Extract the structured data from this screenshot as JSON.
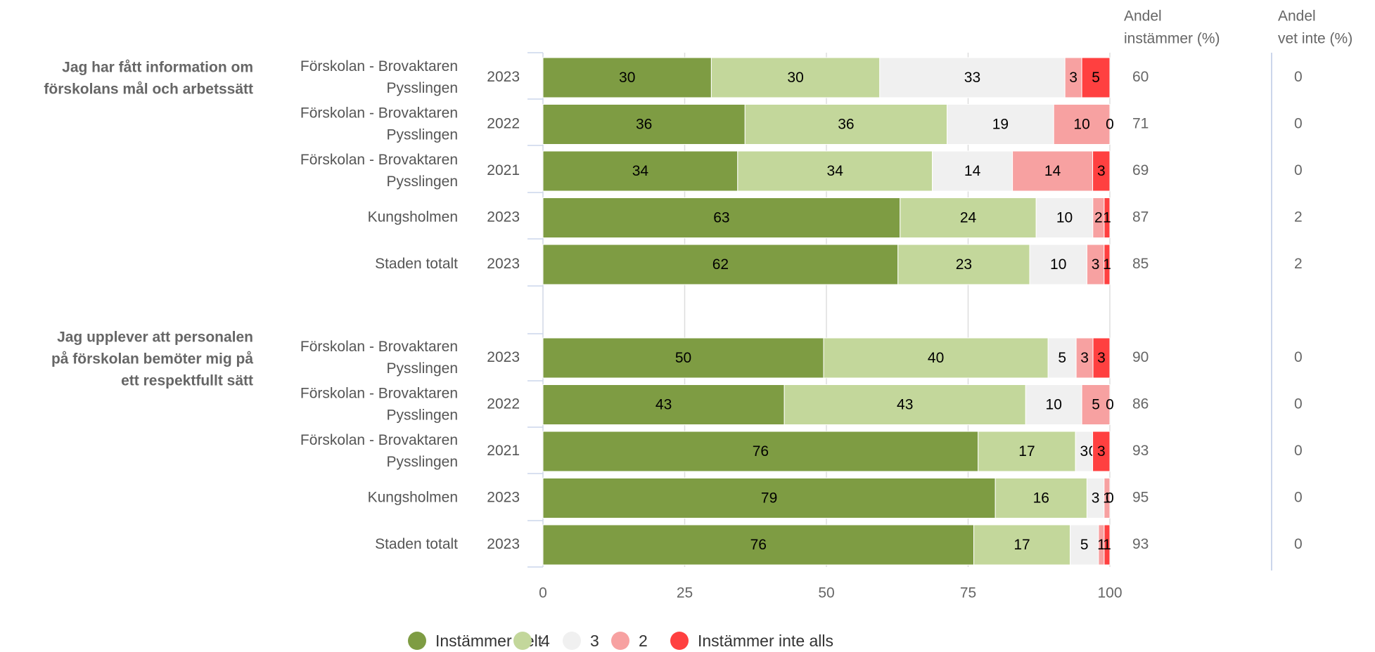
{
  "chart_data": {
    "type": "bar",
    "orientation": "horizontal",
    "stacked": true,
    "xlim": [
      0,
      100
    ],
    "x_ticks": [
      "0",
      "25",
      "50",
      "75",
      "100"
    ],
    "grid": true,
    "legend_position": "bottom",
    "column_headers": {
      "share_agree": "Andel instämmer (%)",
      "share_dont_know": "Andel vet inte (%)"
    },
    "series": [
      {
        "name": "Instämmer helt",
        "color": "#7e9c43"
      },
      {
        "name": "4",
        "color": "#c3d79b"
      },
      {
        "name": "3",
        "color": "#f0f0f0"
      },
      {
        "name": "2",
        "color": "#f7a1a1"
      },
      {
        "name": "Instämmer inte alls",
        "color": "#ff4040"
      }
    ],
    "groups": [
      {
        "question": "Jag har fått information om förskolans mål och arbetssätt",
        "rows": [
          {
            "unit": "Förskolan - Brovaktaren Pysslingen",
            "year": "2023",
            "values": [
              30,
              30,
              33,
              3,
              5
            ],
            "labels": [
              "30",
              "30",
              "33",
              "3",
              "5"
            ],
            "share_agree": "60",
            "share_dont_know": "0"
          },
          {
            "unit": "Förskolan - Brovaktaren Pysslingen",
            "year": "2022",
            "values": [
              36,
              36,
              19,
              10,
              0
            ],
            "labels": [
              "36",
              "36",
              "19",
              "10",
              "0"
            ],
            "share_agree": "71",
            "share_dont_know": "0"
          },
          {
            "unit": "Förskolan - Brovaktaren Pysslingen",
            "year": "2021",
            "values": [
              34,
              34,
              14,
              14,
              3
            ],
            "labels": [
              "34",
              "34",
              "14",
              "14",
              "3"
            ],
            "share_agree": "69",
            "share_dont_know": "0"
          },
          {
            "unit": "Kungsholmen",
            "year": "2023",
            "values": [
              63,
              24,
              10,
              2,
              1
            ],
            "labels": [
              "63",
              "24",
              "10",
              "2",
              "1"
            ],
            "share_agree": "87",
            "share_dont_know": "2"
          },
          {
            "unit": "Staden totalt",
            "year": "2023",
            "values": [
              62,
              23,
              10,
              3,
              1
            ],
            "labels": [
              "62",
              "23",
              "10",
              "3",
              "1"
            ],
            "share_agree": "85",
            "share_dont_know": "2"
          }
        ]
      },
      {
        "question": "Jag upplever att personalen på förskolan bemöter mig på ett respektfullt sätt",
        "rows": [
          {
            "unit": "Förskolan - Brovaktaren Pysslingen",
            "year": "2023",
            "values": [
              50,
              40,
              5,
              3,
              3
            ],
            "labels": [
              "50",
              "40",
              "5",
              "3",
              "3"
            ],
            "share_agree": "90",
            "share_dont_know": "0"
          },
          {
            "unit": "Förskolan - Brovaktaren Pysslingen",
            "year": "2022",
            "values": [
              43,
              43,
              10,
              5,
              0
            ],
            "labels": [
              "43",
              "43",
              "10",
              "5",
              "0"
            ],
            "share_agree": "86",
            "share_dont_know": "0"
          },
          {
            "unit": "Förskolan - Brovaktaren Pysslingen",
            "year": "2021",
            "values": [
              76,
              17,
              3,
              0,
              3
            ],
            "labels": [
              "76",
              "17",
              "3",
              "0",
              "3"
            ],
            "share_agree": "93",
            "share_dont_know": "0"
          },
          {
            "unit": "Kungsholmen",
            "year": "2023",
            "values": [
              79,
              16,
              3,
              1,
              0
            ],
            "labels": [
              "79",
              "16",
              "3",
              "1",
              "0"
            ],
            "share_agree": "95",
            "share_dont_know": "0"
          },
          {
            "unit": "Staden totalt",
            "year": "2023",
            "values": [
              76,
              17,
              5,
              1,
              1
            ],
            "labels": [
              "76",
              "17",
              "5",
              "1",
              "1"
            ],
            "share_agree": "93",
            "share_dont_know": "0"
          }
        ]
      }
    ]
  }
}
